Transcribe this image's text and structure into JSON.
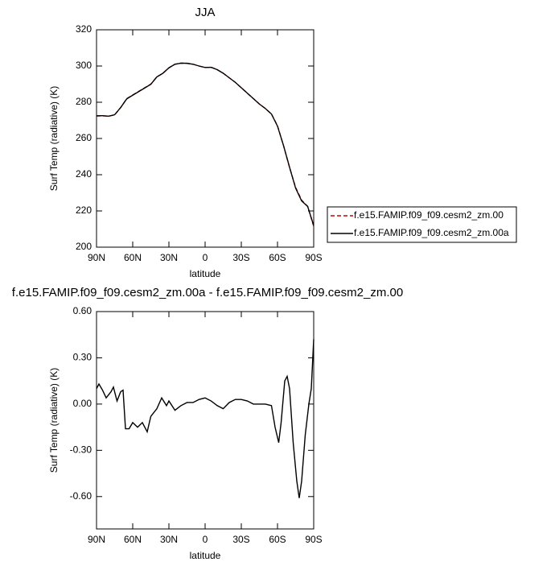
{
  "chart_data": [
    {
      "type": "line",
      "title": "JJA",
      "xlabel": "latitude",
      "ylabel": "Surf Temp (radiative) (K)",
      "x": [
        90,
        85,
        80,
        75,
        70,
        65,
        60,
        55,
        50,
        45,
        40,
        35,
        30,
        25,
        20,
        15,
        10,
        5,
        0,
        -5,
        -10,
        -15,
        -20,
        -25,
        -30,
        -35,
        -40,
        -45,
        -50,
        -55,
        -60,
        -65,
        -70,
        -75,
        -80,
        -85,
        -90
      ],
      "series": [
        {
          "name": "f.e15.FAMIP.f09_f09.cesm2_zm.00",
          "color": "#cc0000",
          "dash": true,
          "values": [
            272.4,
            272.5,
            272.3,
            273,
            277,
            282,
            284,
            286,
            288,
            290,
            294,
            296,
            299,
            301,
            301.6,
            301.5,
            301,
            300,
            299.2,
            299.3,
            298,
            296,
            293.5,
            291,
            288,
            285,
            282,
            279,
            276.5,
            273.5,
            267,
            256,
            244,
            233,
            226,
            222.5,
            211.5
          ]
        },
        {
          "name": "f.e15.FAMIP.f09_f09.cesm2_zm.00a",
          "color": "#000000",
          "dash": false,
          "values": [
            272.5,
            272.6,
            272.3,
            273.1,
            277.1,
            281.8,
            283.9,
            285.9,
            287.9,
            289.9,
            294,
            296,
            299,
            301,
            301.6,
            301.5,
            301,
            300,
            299.2,
            299.3,
            298,
            296,
            293.5,
            291,
            288,
            285,
            282,
            279,
            276.5,
            273.5,
            266.8,
            256.1,
            244.1,
            232.6,
            225.5,
            222.5,
            211.9
          ]
        }
      ],
      "xlim": [
        90,
        -90
      ],
      "xticks": [
        {
          "value": 90,
          "label": "90N"
        },
        {
          "value": 60,
          "label": "60N"
        },
        {
          "value": 30,
          "label": "30N"
        },
        0,
        {
          "value": -30,
          "label": "30S"
        },
        {
          "value": -60,
          "label": "60S"
        },
        {
          "value": -90,
          "label": "90S"
        }
      ],
      "ylim": [
        200,
        320
      ],
      "yticks": [
        200,
        220,
        240,
        260,
        280,
        300,
        320
      ],
      "legend": "right"
    },
    {
      "type": "line",
      "title": "f.e15.FAMIP.f09_f09.cesm2_zm.00a - f.e15.FAMIP.f09_f09.cesm2_zm.00",
      "xlabel": "latitude",
      "ylabel": "Surf Temp (radiative) (K)",
      "x": [
        90,
        88,
        85,
        82,
        78,
        76,
        73,
        70,
        68,
        66,
        63,
        60,
        56,
        52,
        48,
        45,
        40,
        36,
        32,
        30,
        25,
        20,
        15,
        10,
        5,
        0,
        -5,
        -10,
        -15,
        -20,
        -25,
        -30,
        -35,
        -40,
        -50,
        -55,
        -58,
        -61,
        -63,
        -66,
        -68,
        -70,
        -73,
        -76,
        -78,
        -80,
        -83,
        -86,
        -88,
        -90
      ],
      "color": "#000000",
      "values": [
        0.1,
        0.13,
        0.09,
        0.04,
        0.08,
        0.11,
        0.02,
        0.08,
        0.09,
        -0.16,
        -0.16,
        -0.12,
        -0.15,
        -0.12,
        -0.18,
        -0.08,
        -0.03,
        0.04,
        -0.01,
        0.02,
        -0.04,
        -0.01,
        0.01,
        0.01,
        0.03,
        0.04,
        0.02,
        -0.01,
        -0.03,
        0.01,
        0.03,
        0.03,
        0.02,
        0.0,
        0.0,
        -0.01,
        -0.15,
        -0.25,
        -0.12,
        0.15,
        0.18,
        0.1,
        -0.25,
        -0.5,
        -0.61,
        -0.5,
        -0.2,
        0.0,
        0.1,
        0.42
      ],
      "xlim": [
        90,
        -90
      ],
      "xticks": [
        {
          "value": 90,
          "label": "90N"
        },
        {
          "value": 60,
          "label": "60N"
        },
        {
          "value": 30,
          "label": "30N"
        },
        0,
        {
          "value": -30,
          "label": "30S"
        },
        {
          "value": -60,
          "label": "60S"
        },
        {
          "value": -90,
          "label": "90S"
        }
      ],
      "ylim": [
        -0.81,
        0.6
      ],
      "yticks": [
        {
          "value": -0.6,
          "label": "-0.60"
        },
        {
          "value": -0.3,
          "label": "-0.30"
        },
        {
          "value": 0,
          "label": "0.00"
        },
        {
          "value": 0.3,
          "label": "0.30"
        },
        {
          "value": 0.6,
          "label": "0.60"
        }
      ]
    }
  ]
}
